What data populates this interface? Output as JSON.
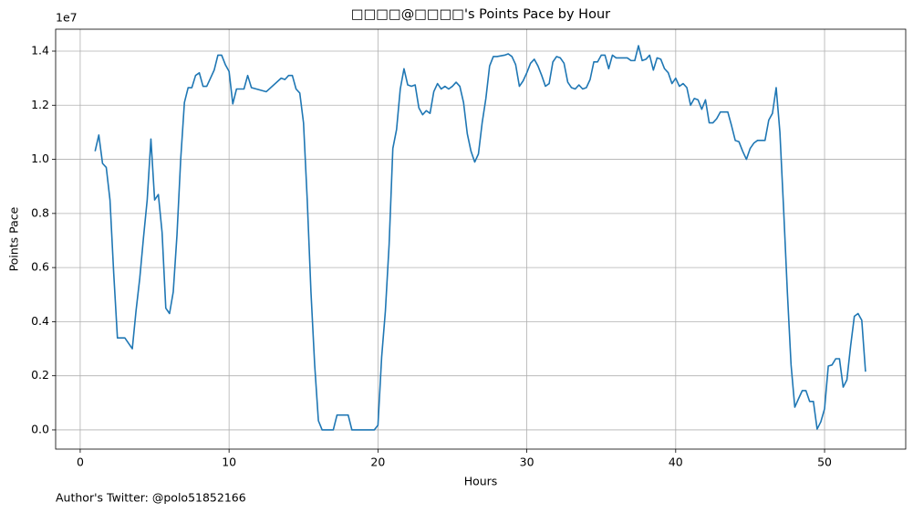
{
  "chart_data": {
    "type": "line",
    "title": "□□□□@□□□□'s Points Pace by Hour",
    "x_label": "Hours",
    "y_label": "Points Pace",
    "y_offset_label": "1e7",
    "annotation": "Author's Twitter: @polo51852166",
    "xlim": [
      -1.65,
      55.45
    ],
    "ylim": [
      -0.071,
      1.481
    ],
    "xticks": [
      0,
      10,
      20,
      30,
      40,
      50
    ],
    "yticks": [
      {
        "value": 0,
        "label": "0.0"
      },
      0.2,
      0.4,
      0.6,
      0.8,
      {
        "value": 1,
        "label": "1.0"
      },
      1.2,
      1.4
    ],
    "grid": true,
    "series": [
      {
        "name": "Points Pace",
        "color": "#1f77b4",
        "x": [
          1.0,
          1.25,
          1.5,
          1.75,
          2.0,
          2.25,
          2.5,
          3.0,
          3.5,
          3.75,
          4.0,
          4.25,
          4.5,
          4.75,
          5.0,
          5.25,
          5.5,
          5.75,
          6.0,
          6.25,
          6.5,
          6.75,
          7.0,
          7.25,
          7.5,
          7.75,
          8.0,
          8.25,
          8.5,
          8.75,
          9.0,
          9.25,
          9.5,
          9.75,
          10.0,
          10.25,
          10.5,
          11.0,
          11.25,
          11.5,
          12.5,
          13.5,
          13.75,
          14.0,
          14.25,
          14.5,
          14.75,
          15.0,
          15.25,
          15.5,
          15.75,
          16.0,
          16.25,
          17.0,
          17.25,
          18.0,
          18.25,
          19.75,
          20.0,
          20.25,
          20.5,
          20.75,
          21.0,
          21.25,
          21.5,
          21.75,
          22.0,
          22.25,
          22.5,
          22.75,
          23.0,
          23.25,
          23.5,
          23.75,
          24.0,
          24.25,
          24.5,
          24.75,
          25.0,
          25.25,
          25.5,
          25.75,
          26.0,
          26.25,
          26.5,
          26.75,
          27.0,
          27.25,
          27.5,
          27.75,
          28.0,
          28.5,
          28.75,
          29.0,
          29.25,
          29.5,
          29.75,
          30.0,
          30.25,
          30.5,
          30.75,
          31.0,
          31.25,
          31.5,
          31.75,
          32.0,
          32.25,
          32.5,
          32.75,
          33.0,
          33.25,
          33.5,
          33.75,
          34.0,
          34.25,
          34.5,
          34.75,
          35.0,
          35.25,
          35.5,
          35.75,
          36.0,
          36.75,
          37.0,
          37.25,
          37.5,
          37.75,
          38.0,
          38.25,
          38.5,
          38.75,
          39.0,
          39.25,
          39.5,
          39.75,
          40.0,
          40.25,
          40.5,
          40.75,
          41.0,
          41.25,
          41.5,
          41.75,
          42.0,
          42.25,
          42.5,
          42.75,
          43.0,
          43.25,
          43.5,
          43.75,
          44.0,
          44.25,
          44.5,
          44.75,
          45.0,
          45.25,
          45.5,
          45.75,
          46.0,
          46.25,
          46.5,
          46.75,
          47.0,
          47.25,
          47.5,
          47.75,
          48.0,
          48.25,
          48.5,
          48.75,
          49.0,
          49.25,
          49.5,
          49.75,
          50.0,
          50.25,
          50.5,
          50.75,
          51.0,
          51.25,
          51.5,
          51.75,
          52.0,
          52.25,
          52.5,
          52.75
        ],
        "values": [
          1.03,
          1.09,
          0.985,
          0.97,
          0.85,
          0.58,
          0.34,
          0.34,
          0.3,
          0.44,
          0.56,
          0.71,
          0.85,
          1.075,
          0.85,
          0.87,
          0.73,
          0.45,
          0.43,
          0.51,
          0.72,
          1.0,
          1.21,
          1.265,
          1.265,
          1.31,
          1.32,
          1.27,
          1.27,
          1.3,
          1.33,
          1.385,
          1.385,
          1.35,
          1.325,
          1.205,
          1.26,
          1.26,
          1.31,
          1.265,
          1.25,
          1.3,
          1.295,
          1.31,
          1.31,
          1.26,
          1.245,
          1.135,
          0.85,
          0.51,
          0.24,
          0.034,
          0,
          0,
          0.055,
          0.055,
          0,
          0,
          0.017,
          0.27,
          0.44,
          0.685,
          1.04,
          1.11,
          1.26,
          1.335,
          1.275,
          1.27,
          1.275,
          1.19,
          1.165,
          1.18,
          1.17,
          1.25,
          1.28,
          1.26,
          1.27,
          1.26,
          1.27,
          1.285,
          1.27,
          1.21,
          1.095,
          1.03,
          0.99,
          1.02,
          1.135,
          1.225,
          1.345,
          1.38,
          1.38,
          1.385,
          1.39,
          1.38,
          1.35,
          1.27,
          1.29,
          1.32,
          1.355,
          1.37,
          1.345,
          1.31,
          1.27,
          1.28,
          1.36,
          1.38,
          1.375,
          1.355,
          1.285,
          1.265,
          1.26,
          1.275,
          1.26,
          1.265,
          1.295,
          1.36,
          1.36,
          1.385,
          1.385,
          1.335,
          1.385,
          1.375,
          1.375,
          1.365,
          1.365,
          1.42,
          1.365,
          1.37,
          1.385,
          1.33,
          1.375,
          1.37,
          1.335,
          1.32,
          1.28,
          1.3,
          1.27,
          1.28,
          1.265,
          1.2,
          1.225,
          1.22,
          1.185,
          1.22,
          1.135,
          1.135,
          1.15,
          1.175,
          1.175,
          1.175,
          1.125,
          1.07,
          1.065,
          1.03,
          1.0,
          1.04,
          1.06,
          1.07,
          1.07,
          1.07,
          1.145,
          1.17,
          1.265,
          1.1,
          0.815,
          0.51,
          0.24,
          0.084,
          0.115,
          0.145,
          0.145,
          0.105,
          0.105,
          0.003,
          0.03,
          0.078,
          0.236,
          0.24,
          0.263,
          0.263,
          0.158,
          0.185,
          0.31,
          0.42,
          0.43,
          0.405,
          0.215
        ]
      }
    ]
  }
}
